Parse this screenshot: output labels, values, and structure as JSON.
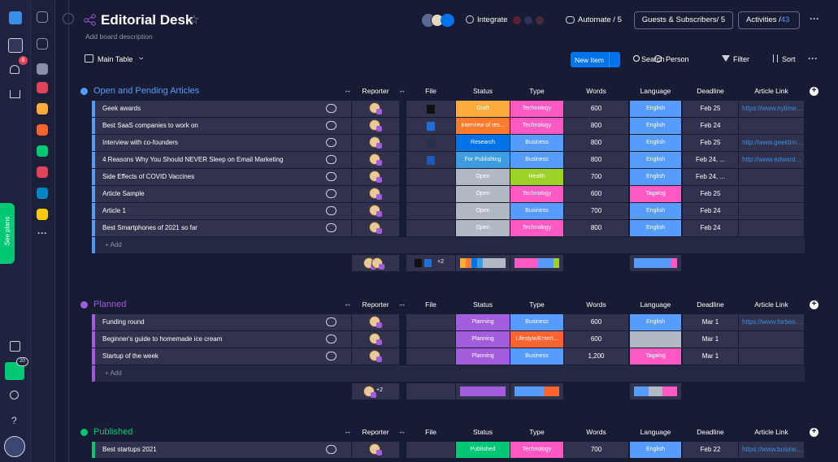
{
  "sidebar": {
    "notifications": "6",
    "invites": "20",
    "see_plans": "See plans"
  },
  "header": {
    "title": "Editorial Desk",
    "description": "Add board description",
    "integrate": "Integrate",
    "automate": "Automate / 5",
    "guests": "Guests & Subscribers/ 5",
    "activities": "Activities /",
    "activities_count": "43"
  },
  "toolbar": {
    "view": "Main Table",
    "new_item": "New Item",
    "search": "Search",
    "person": "Person",
    "filter": "Filter",
    "sort": "Sort"
  },
  "columns": [
    "Reporter",
    "File",
    "Status",
    "Type",
    "Words",
    "Language",
    "Deadline",
    "Article Link"
  ],
  "add_label": "+ Add",
  "groups": [
    {
      "name": "Open and Pending Articles",
      "color": "#579bfc",
      "summary_files": "+2",
      "rows": [
        {
          "name": "Geek awards",
          "status": "Draft",
          "status_color": "#fdab3d",
          "type": "Technology",
          "type_color": "#ff5ac4",
          "words": "600",
          "language": "English",
          "language_color": "#579bfc",
          "deadline": "Feb 25",
          "link": "https://www.nytimes.com"
        },
        {
          "name": "Best SaaS companies to work on",
          "status": "Interview of res...",
          "status_color": "#ff7b2e",
          "type": "Technology",
          "type_color": "#ff5ac4",
          "words": "800",
          "language": "English",
          "language_color": "#579bfc",
          "deadline": "Feb 24",
          "link": null
        },
        {
          "name": "Interview with co-founders",
          "status": "Research",
          "status_color": "#0073ea",
          "type": "Business",
          "type_color": "#579bfc",
          "words": "800",
          "language": "English",
          "language_color": "#579bfc",
          "deadline": "Feb 25",
          "link": "http://www.geektime.com"
        },
        {
          "name": "4 Reasons Why You Should NEVER Sleep on Email Marketing",
          "status": "For Publishing",
          "status_color": "#3d9de0",
          "type": "Business",
          "type_color": "#579bfc",
          "words": "800",
          "language": "English",
          "language_color": "#579bfc",
          "deadline": "Feb 24, ...",
          "link": "http://www.edwardc.com"
        },
        {
          "name": "Side Effects of COVID Vaccines",
          "status": "Open",
          "status_color": "#b3b9c4",
          "type": "Health",
          "type_color": "#9cd326",
          "words": "700",
          "language": "English",
          "language_color": "#579bfc",
          "deadline": "Feb 24, ...",
          "link": null
        },
        {
          "name": "Article Sample",
          "status": "Open",
          "status_color": "#b3b9c4",
          "type": "Technology",
          "type_color": "#ff5ac4",
          "words": "600",
          "language": "Tagalog",
          "language_color": "#ff5ac4",
          "deadline": "Feb 25",
          "link": null
        },
        {
          "name": "Article 1",
          "status": "Open",
          "status_color": "#b3b9c4",
          "type": "Business",
          "type_color": "#579bfc",
          "words": "700",
          "language": "English",
          "language_color": "#579bfc",
          "deadline": "Feb 24",
          "link": null
        },
        {
          "name": "Best Smartphones of 2021 so far",
          "status": "Open",
          "status_color": "#b3b9c4",
          "type": "Technology",
          "type_color": "#ff5ac4",
          "words": "800",
          "language": "English",
          "language_color": "#579bfc",
          "deadline": "Feb 24",
          "link": null
        }
      ]
    },
    {
      "name": "Planned",
      "color": "#a25ddc",
      "summary_reporters": "+2",
      "rows": [
        {
          "name": "Funding round",
          "status": "Planning",
          "status_color": "#a25ddc",
          "type": "Business",
          "type_color": "#579bfc",
          "words": "600",
          "language": "English",
          "language_color": "#579bfc",
          "deadline": "Mar 1",
          "link": "https://www.forbes.com"
        },
        {
          "name": "Beginner's guide to homemade ice cream",
          "status": "Planning",
          "status_color": "#a25ddc",
          "type": "Lifestyle/Entert...",
          "type_color": "#ff642e",
          "words": "600",
          "language": null,
          "language_color": "#b3b9c4",
          "deadline": "Mar 1",
          "link": null
        },
        {
          "name": "Startup of the week",
          "status": "Planning",
          "status_color": "#a25ddc",
          "type": "Business",
          "type_color": "#579bfc",
          "words": "1,200",
          "language": "Tagalog",
          "language_color": "#ff5ac4",
          "deadline": "Mar 1",
          "link": null
        }
      ]
    },
    {
      "name": "Published",
      "color": "#00c875",
      "rows": [
        {
          "name": "Best startups 2021",
          "status": "Published",
          "status_color": "#00c875",
          "type": "Technology",
          "type_color": "#ff5ac4",
          "words": "700",
          "language": "English",
          "language_color": "#579bfc",
          "deadline": "Feb 22",
          "link": "https://www.business.com"
        }
      ]
    }
  ]
}
